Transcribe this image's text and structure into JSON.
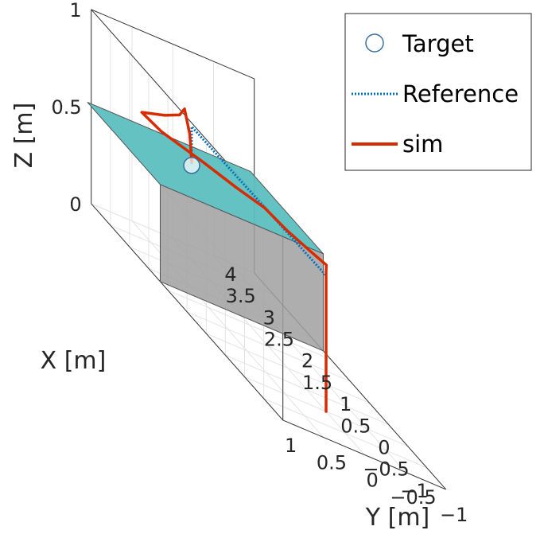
{
  "chart_data": {
    "type": "line3d",
    "title": "",
    "xlabel": "X [m]",
    "ylabel": "Y [m]",
    "zlabel": "Z [m]",
    "xlim": [
      -1,
      4
    ],
    "ylim": [
      -1,
      1
    ],
    "zlim": [
      0,
      1
    ],
    "grid": true,
    "legend_position": "top-right",
    "x_ticks": [
      "−1",
      "−0.5",
      "0",
      "0.5",
      "1",
      "1.5",
      "2",
      "2.5",
      "3",
      "3.5",
      "4"
    ],
    "y_ticks": [
      "1",
      "0.5",
      "0",
      "−0.5",
      "−1"
    ],
    "z_ticks": [
      "0",
      "0.5",
      "1"
    ],
    "legend": [
      {
        "name": "Target",
        "style": "circle"
      },
      {
        "name": "Reference",
        "style": "dotted"
      },
      {
        "name": "sim",
        "style": "solid"
      }
    ],
    "colors": {
      "reference": "#0072bd",
      "sim": "#d62c00",
      "platform_top": "#5dbfbf",
      "platform_side": "#a0a0a0",
      "target_face": "#ffffff"
    },
    "platform": {
      "x": [
        2.2,
        4.1
      ],
      "y": [
        -1,
        1
      ],
      "z": [
        0,
        0.5
      ]
    },
    "target": {
      "x": 3.4,
      "y": 0.05,
      "z": 0.5
    },
    "reference": [
      {
        "x": 0.0,
        "y": 0.0,
        "z": 0.0
      },
      {
        "x": 0.0,
        "y": 0.0,
        "z": 0.7
      },
      {
        "x": 3.4,
        "y": 0.05,
        "z": 0.7
      },
      {
        "x": 3.4,
        "y": 0.05,
        "z": 0.5
      }
    ],
    "sim": [
      {
        "x": 0.0,
        "y": 0.0,
        "z": 0.0
      },
      {
        "x": 0.0,
        "y": 0.0,
        "z": 0.72
      },
      {
        "x": 0.25,
        "y": -0.12,
        "z": 0.72
      },
      {
        "x": 0.5,
        "y": -0.05,
        "z": 0.72
      },
      {
        "x": 0.9,
        "y": 0.05,
        "z": 0.72
      },
      {
        "x": 1.4,
        "y": 0.1,
        "z": 0.72
      },
      {
        "x": 1.7,
        "y": 0.3,
        "z": 0.72
      },
      {
        "x": 2.1,
        "y": 0.5,
        "z": 0.72
      },
      {
        "x": 2.6,
        "y": 0.8,
        "z": 0.72
      },
      {
        "x": 3.0,
        "y": 0.85,
        "z": 0.72
      },
      {
        "x": 3.25,
        "y": 0.45,
        "z": 0.72
      },
      {
        "x": 3.5,
        "y": 0.15,
        "z": 0.72
      },
      {
        "x": 3.8,
        "y": -0.05,
        "z": 0.72
      },
      {
        "x": 3.45,
        "y": 0.05,
        "z": 0.65
      },
      {
        "x": 3.4,
        "y": 0.05,
        "z": 0.52
      }
    ]
  }
}
